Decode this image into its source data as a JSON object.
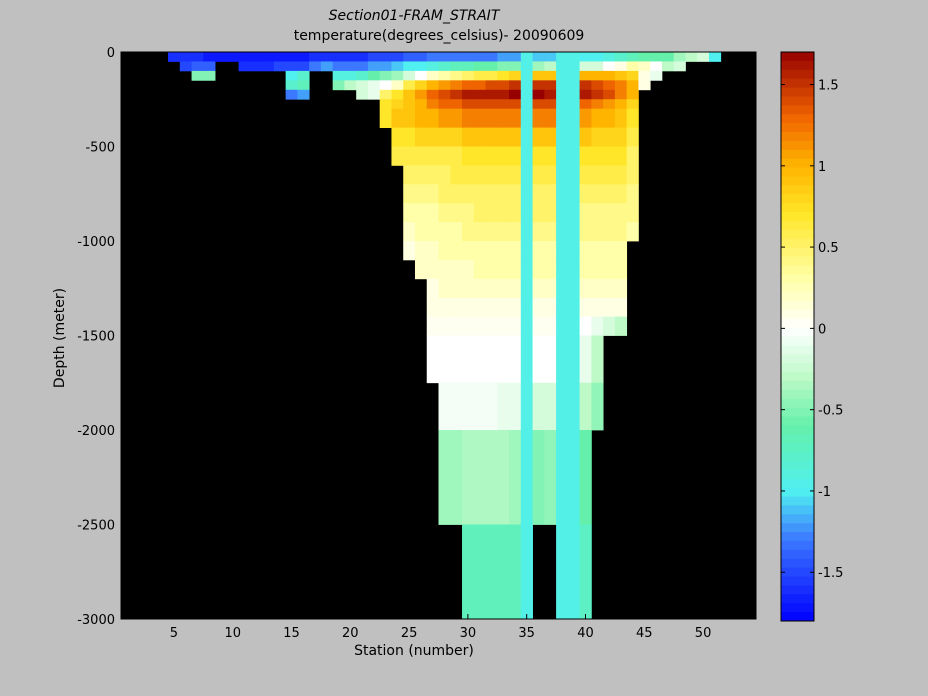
{
  "chart_data": {
    "type": "heatmap",
    "title": "Section01-FRAM_STRAIT",
    "subtitle": "temperature(degrees_celsius)- 20090609",
    "xlabel": "Station (number)",
    "ylabel": "Depth (meter)",
    "xlim": [
      1,
      54
    ],
    "ylim": [
      -3000,
      0
    ],
    "xticks": [
      5,
      10,
      15,
      20,
      25,
      30,
      35,
      40,
      45,
      50
    ],
    "yticks": [
      0,
      -500,
      -1000,
      -1500,
      -2000,
      -2500,
      -3000
    ],
    "colorbar": {
      "range": [
        -1.8,
        1.7
      ],
      "ticks": [
        1.5,
        1,
        0.5,
        0,
        -0.5,
        -1,
        -1.5
      ],
      "colormap": "jet"
    },
    "background_color": "#000000",
    "depth_levels": [
      0,
      50,
      100,
      150,
      200,
      250,
      300,
      400,
      500,
      600,
      700,
      800,
      900,
      1000,
      1100,
      1200,
      1300,
      1400,
      1500,
      1750,
      2000,
      2500,
      3000
    ],
    "stations": [
      {
        "x": 5,
        "max_depth": 50,
        "temps": [
          -1.6
        ]
      },
      {
        "x": 6,
        "max_depth": 100,
        "temps": [
          -1.6,
          -1.5
        ]
      },
      {
        "x": 7,
        "max_depth": 150,
        "temps": [
          -1.6,
          -1.4,
          -0.5
        ]
      },
      {
        "x": 8,
        "max_depth": 150,
        "temps": [
          -1.7,
          -1.4,
          -0.5
        ]
      },
      {
        "x": 9,
        "max_depth": 50,
        "temps": [
          -1.7
        ]
      },
      {
        "x": 10,
        "max_depth": 50,
        "temps": [
          -1.7
        ]
      },
      {
        "x": 11,
        "max_depth": 100,
        "temps": [
          -1.7,
          -1.6
        ]
      },
      {
        "x": 12,
        "max_depth": 100,
        "temps": [
          -1.7,
          -1.6
        ]
      },
      {
        "x": 13,
        "max_depth": 100,
        "temps": [
          -1.7,
          -1.6
        ]
      },
      {
        "x": 14,
        "max_depth": 100,
        "temps": [
          -1.7,
          -1.5
        ]
      },
      {
        "x": 15,
        "max_depth": 250,
        "temps": [
          -1.7,
          -1.5,
          -1.0,
          -0.8,
          -1.3
        ]
      },
      {
        "x": 16,
        "max_depth": 300,
        "temps": [
          -1.7,
          -1.5,
          -0.8,
          -0.7,
          -1.2
        ]
      },
      {
        "x": 17,
        "max_depth": 100,
        "temps": [
          -1.6,
          -1.3
        ]
      },
      {
        "x": 18,
        "max_depth": 100,
        "temps": [
          -1.6,
          -1.2
        ]
      },
      {
        "x": 19,
        "max_depth": 200,
        "temps": [
          -1.6,
          -1.3,
          -0.9,
          -0.5
        ]
      },
      {
        "x": 20,
        "max_depth": 200,
        "temps": [
          -1.6,
          -1.3,
          -0.9,
          -0.3
        ]
      },
      {
        "x": 21,
        "max_depth": 250,
        "temps": [
          -1.6,
          -1.3,
          -0.8,
          -0.2,
          -0.2
        ]
      },
      {
        "x": 22,
        "max_depth": 250,
        "temps": [
          -1.5,
          -1.2,
          -0.6,
          -0.1,
          -0.1
        ]
      },
      {
        "x": 23,
        "max_depth": 400,
        "temps": [
          -1.5,
          -1.2,
          -0.5,
          0.0,
          0.5,
          0.7,
          0.7
        ]
      },
      {
        "x": 24,
        "max_depth": 600,
        "temps": [
          -1.5,
          -1.1,
          -0.4,
          0.2,
          0.7,
          0.8,
          0.9,
          0.7,
          0.6
        ]
      },
      {
        "x": 25,
        "max_depth": 1100,
        "temps": [
          -1.4,
          -1.0,
          -0.2,
          0.6,
          0.9,
          0.9,
          0.9,
          0.7,
          0.6,
          0.5,
          0.4,
          0.3,
          0.2,
          0.1,
          0.1
        ]
      },
      {
        "x": 26,
        "max_depth": 1200,
        "temps": [
          -1.4,
          -1.0,
          0.0,
          0.8,
          1.1,
          1.0,
          1.0,
          0.8,
          0.6,
          0.5,
          0.4,
          0.3,
          0.3,
          0.2,
          0.2,
          0.2
        ]
      },
      {
        "x": 27,
        "max_depth": 1750,
        "temps": [
          -1.3,
          -0.9,
          0.2,
          1.0,
          1.3,
          1.2,
          1.0,
          0.8,
          0.6,
          0.5,
          0.4,
          0.3,
          0.3,
          0.2,
          0.2,
          0.1,
          0.1,
          0.05,
          0.0,
          -0.05
        ]
      },
      {
        "x": 28,
        "max_depth": 2500,
        "temps": [
          -1.3,
          -0.8,
          0.3,
          1.1,
          1.4,
          1.3,
          1.1,
          0.8,
          0.6,
          0.5,
          0.5,
          0.4,
          0.3,
          0.3,
          0.2,
          0.2,
          0.1,
          0.05,
          0.0,
          -0.05,
          -0.4,
          -0.7
        ]
      },
      {
        "x": 29,
        "max_depth": 2500,
        "temps": [
          -1.3,
          -0.7,
          0.4,
          1.2,
          1.5,
          1.3,
          1.1,
          0.8,
          0.6,
          0.6,
          0.5,
          0.4,
          0.3,
          0.3,
          0.2,
          0.2,
          0.1,
          0.05,
          0.0,
          -0.05,
          -0.4,
          -0.7
        ]
      },
      {
        "x": 30,
        "max_depth": 3000,
        "temps": [
          -1.3,
          -0.7,
          0.5,
          1.3,
          1.6,
          1.4,
          1.2,
          0.9,
          0.7,
          0.6,
          0.5,
          0.4,
          0.4,
          0.3,
          0.2,
          0.2,
          0.1,
          0.05,
          0.0,
          -0.05,
          -0.35,
          -0.7,
          -0.85
        ]
      },
      {
        "x": 31,
        "max_depth": 3000,
        "temps": [
          -1.3,
          -0.6,
          0.6,
          1.3,
          1.6,
          1.4,
          1.2,
          0.9,
          0.7,
          0.6,
          0.5,
          0.5,
          0.4,
          0.3,
          0.3,
          0.2,
          0.1,
          0.05,
          0.0,
          -0.05,
          -0.35,
          -0.7,
          -0.85
        ]
      },
      {
        "x": 32,
        "max_depth": 3000,
        "temps": [
          -1.3,
          -0.6,
          0.6,
          1.4,
          1.6,
          1.4,
          1.2,
          0.9,
          0.7,
          0.6,
          0.5,
          0.5,
          0.4,
          0.3,
          0.3,
          0.2,
          0.1,
          0.05,
          0.0,
          -0.05,
          -0.35,
          -0.7,
          -0.85
        ]
      },
      {
        "x": 33,
        "max_depth": 3000,
        "temps": [
          -1.2,
          -0.5,
          0.7,
          1.4,
          1.6,
          1.4,
          1.2,
          0.9,
          0.7,
          0.6,
          0.5,
          0.5,
          0.4,
          0.3,
          0.3,
          0.2,
          0.1,
          0.05,
          0.0,
          -0.1,
          -0.35,
          -0.7,
          -0.85
        ]
      },
      {
        "x": 34,
        "max_depth": 3000,
        "temps": [
          -1.2,
          -0.5,
          0.8,
          1.5,
          1.7,
          1.4,
          1.2,
          0.9,
          0.7,
          0.6,
          0.5,
          0.5,
          0.4,
          0.3,
          0.3,
          0.2,
          0.1,
          0.05,
          0.0,
          -0.1,
          -0.4,
          -0.7,
          -0.85
        ]
      },
      {
        "x": 35,
        "max_depth": 3000,
        "temps": [
          -0.95,
          -0.95,
          -0.95,
          -0.95,
          -0.95,
          -0.95,
          -0.95,
          -0.95,
          -0.95,
          -0.95,
          -0.95,
          -0.95,
          -0.95,
          -0.95,
          -0.95,
          -0.95,
          -0.95,
          -0.95,
          -0.95,
          -0.95,
          -0.95,
          -0.95,
          -0.95
        ]
      },
      {
        "x": 36,
        "max_depth": 2500,
        "temps": [
          -1.1,
          -0.4,
          0.9,
          1.5,
          1.7,
          1.4,
          1.2,
          0.9,
          0.7,
          0.6,
          0.5,
          0.5,
          0.4,
          0.3,
          0.3,
          0.2,
          0.1,
          0.05,
          0.0,
          -0.2,
          -0.5,
          -0.7
        ]
      },
      {
        "x": 37,
        "max_depth": 2500,
        "temps": [
          -1.1,
          -0.3,
          0.9,
          1.5,
          1.6,
          1.4,
          1.2,
          0.9,
          0.7,
          0.6,
          0.5,
          0.5,
          0.4,
          0.3,
          0.3,
          0.2,
          0.1,
          0.05,
          0.0,
          -0.2,
          -0.45,
          -0.7
        ]
      },
      {
        "x": 38,
        "max_depth": 3000,
        "temps": [
          -0.95,
          -0.95,
          -0.95,
          -0.95,
          -0.95,
          -0.95,
          -0.95,
          -0.95,
          -0.95,
          -0.95,
          -0.95,
          -0.95,
          -0.95,
          -0.95,
          -0.95,
          -0.95,
          -0.95,
          -0.95,
          -0.95,
          -0.95,
          -0.95,
          -0.95,
          -0.95
        ]
      },
      {
        "x": 39,
        "max_depth": 3000,
        "temps": [
          -0.95,
          -0.95,
          -0.95,
          -0.95,
          -0.95,
          -0.95,
          -0.95,
          -0.95,
          -0.95,
          -0.95,
          -0.95,
          -0.95,
          -0.95,
          -0.95,
          -0.95,
          -0.95,
          -0.95,
          -0.95,
          -0.95,
          -0.95,
          -0.95,
          -0.95,
          -0.95
        ]
      },
      {
        "x": 40,
        "max_depth": 3000,
        "temps": [
          -1.0,
          -0.2,
          1.0,
          1.5,
          1.6,
          1.3,
          1.1,
          0.9,
          0.7,
          0.6,
          0.5,
          0.4,
          0.4,
          0.3,
          0.3,
          0.2,
          0.1,
          0.0,
          -0.1,
          -0.3,
          -0.6,
          -0.75,
          -0.4
        ]
      },
      {
        "x": 41,
        "max_depth": 2000,
        "temps": [
          -1.0,
          -0.2,
          1.0,
          1.4,
          1.5,
          1.2,
          1.0,
          0.8,
          0.7,
          0.6,
          0.5,
          0.4,
          0.4,
          0.3,
          0.3,
          0.2,
          0.1,
          -0.1,
          -0.3,
          -0.45,
          -0.5
        ]
      },
      {
        "x": 42,
        "max_depth": 1500,
        "temps": [
          -0.9,
          0.0,
          1.0,
          1.3,
          1.4,
          1.1,
          1.0,
          0.8,
          0.7,
          0.6,
          0.5,
          0.4,
          0.4,
          0.3,
          0.3,
          0.2,
          0.1,
          -0.2,
          -0.3
        ]
      },
      {
        "x": 43,
        "max_depth": 1500,
        "temps": [
          -0.8,
          0.1,
          0.9,
          1.2,
          1.2,
          1.0,
          0.9,
          0.8,
          0.7,
          0.6,
          0.5,
          0.4,
          0.4,
          0.3,
          0.3,
          0.2,
          0.1,
          -0.3,
          -0.3
        ]
      },
      {
        "x": 44,
        "max_depth": 1000,
        "temps": [
          -0.7,
          0.3,
          0.8,
          1.0,
          1.0,
          0.8,
          0.7,
          0.6,
          0.5,
          0.5,
          0.4,
          0.4,
          0.3,
          0.3
        ]
      },
      {
        "x": 45,
        "max_depth": 200,
        "temps": [
          -0.6,
          0.2,
          0.1,
          0.1
        ]
      },
      {
        "x": 46,
        "max_depth": 150,
        "temps": [
          -0.6,
          0.0,
          -0.1
        ]
      },
      {
        "x": 47,
        "max_depth": 100,
        "temps": [
          -0.6,
          -0.3
        ]
      },
      {
        "x": 48,
        "max_depth": 100,
        "temps": [
          -0.4,
          -0.2
        ]
      },
      {
        "x": 49,
        "max_depth": 50,
        "temps": [
          -0.3
        ]
      },
      {
        "x": 50,
        "max_depth": 50,
        "temps": [
          -0.2
        ]
      },
      {
        "x": 51,
        "max_depth": 50,
        "temps": [
          -1.0
        ]
      }
    ]
  }
}
